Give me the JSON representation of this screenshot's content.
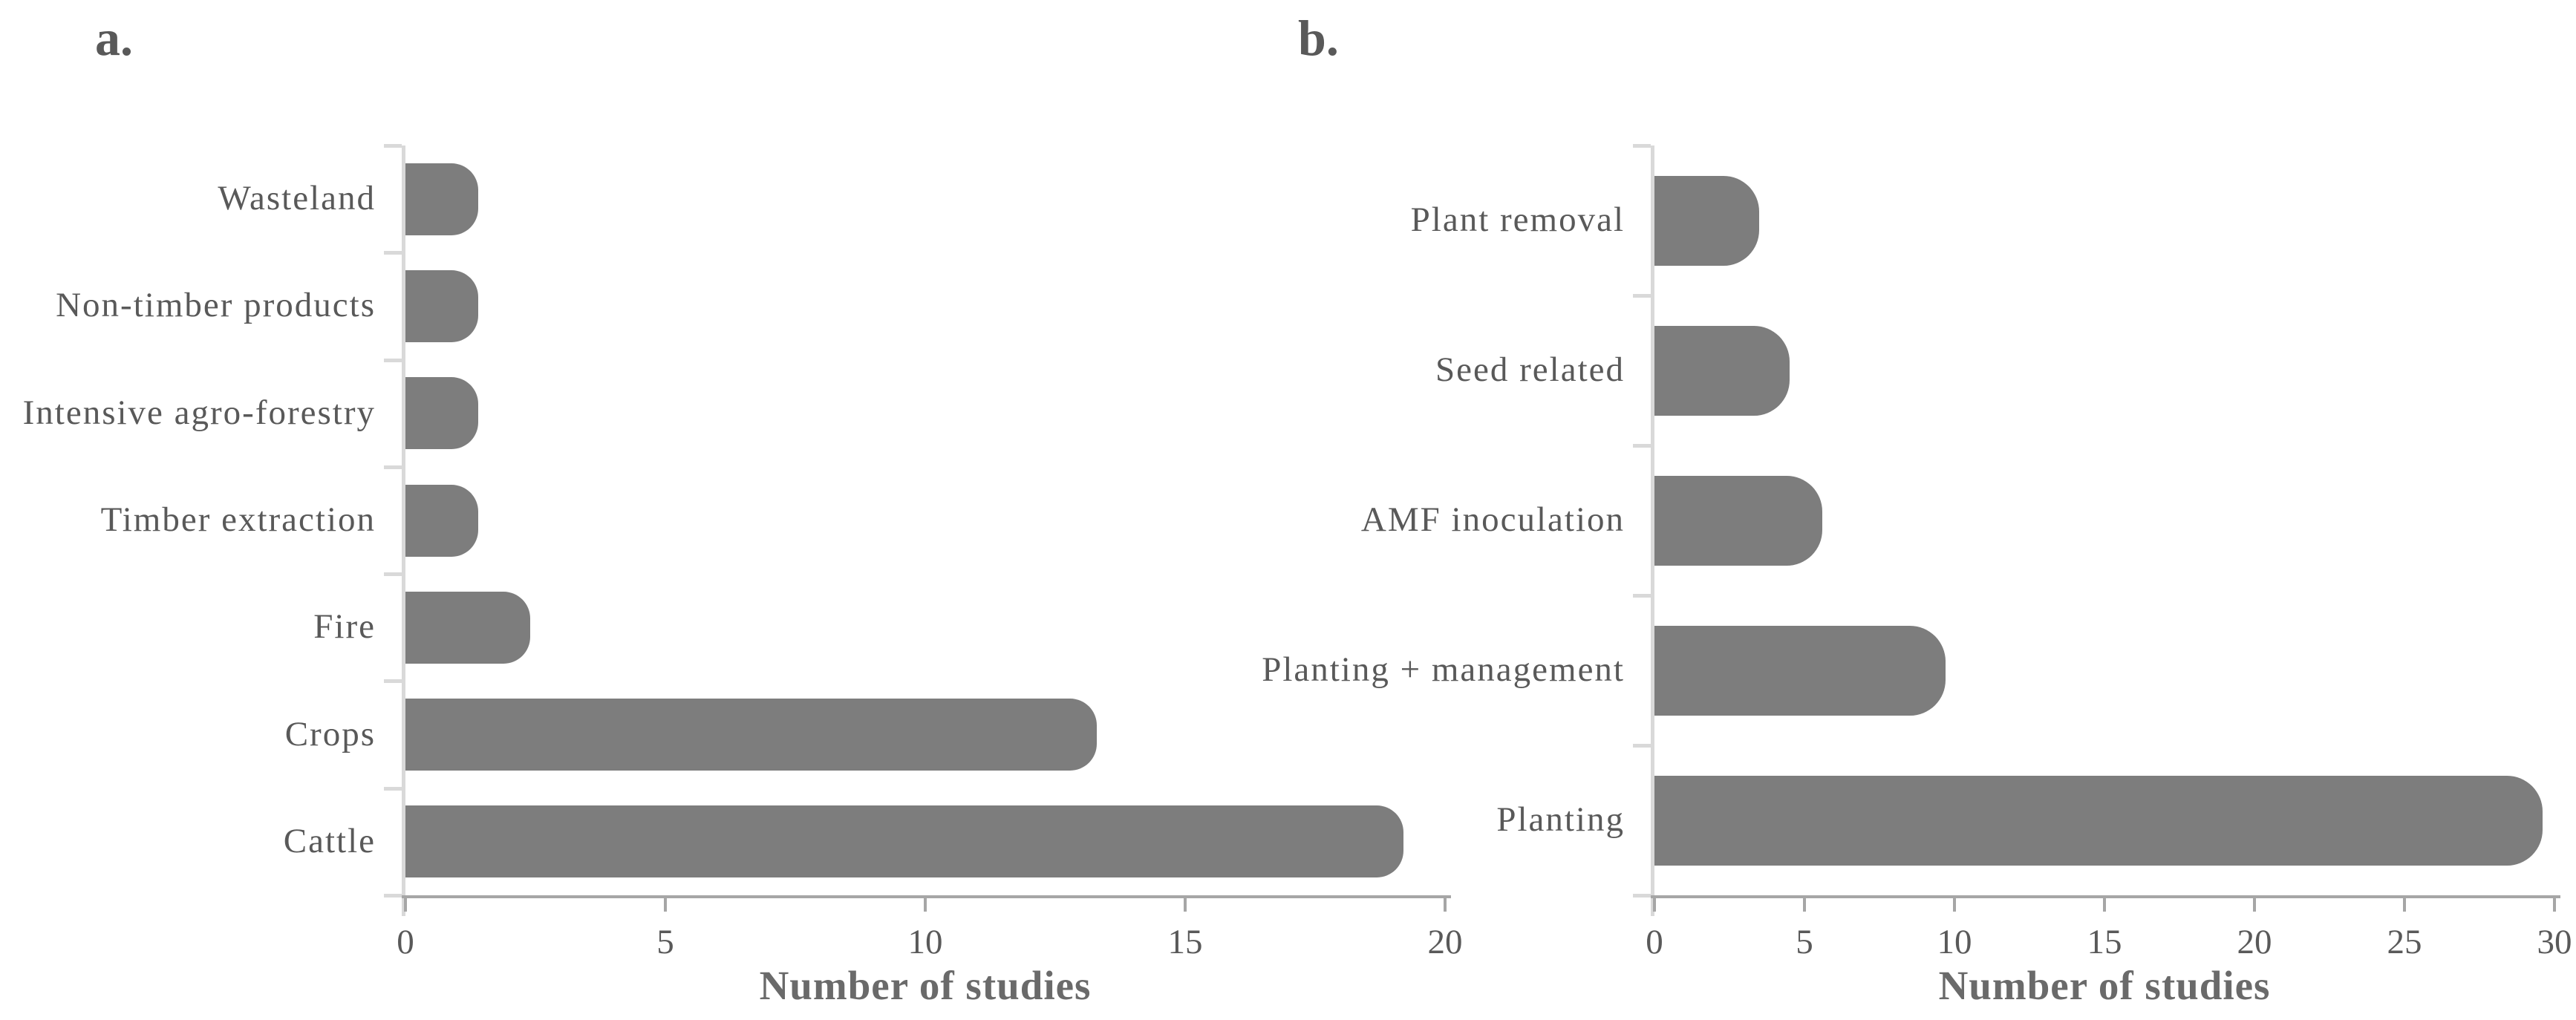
{
  "figure": {
    "background": "#ffffff",
    "description": "Two-panel horizontal bar chart figure showing number of studies per category"
  },
  "colors": {
    "bar": "#7d7d7d",
    "text": "#595959",
    "axis_title_text": "#6a6a6a",
    "x_axis": "#a6a6a6",
    "y_axis": "#d9d9d9",
    "background": "#ffffff"
  },
  "chart_data": [
    {
      "panel_label": "a.",
      "type": "bar",
      "orientation": "horizontal",
      "xlabel": "Number of studies",
      "categories_top_to_bottom": [
        "Wasteland",
        "Non-timber products",
        "Intensive agro-forestry",
        "Timber extraction",
        "Fire",
        "Crops",
        "Cattle"
      ],
      "values": [
        1.4,
        1.4,
        1.4,
        1.4,
        2.4,
        13.3,
        19.2
      ],
      "xlim": [
        0,
        20
      ],
      "xticks": [
        0,
        5,
        10,
        15,
        20
      ],
      "grid": false,
      "legend": false,
      "bar_color": "#7d7d7d"
    },
    {
      "panel_label": "b.",
      "type": "bar",
      "orientation": "horizontal",
      "xlabel": "Number of studies",
      "categories_top_to_bottom": [
        "Plant removal",
        "Seed related",
        "AMF inoculation",
        "Planting + management",
        "Planting"
      ],
      "values": [
        3.5,
        4.5,
        5.6,
        9.7,
        29.6
      ],
      "xlim": [
        0,
        30
      ],
      "xticks": [
        0,
        5,
        10,
        15,
        20,
        25,
        30
      ],
      "grid": false,
      "legend": false,
      "bar_color": "#7d7d7d"
    }
  ]
}
